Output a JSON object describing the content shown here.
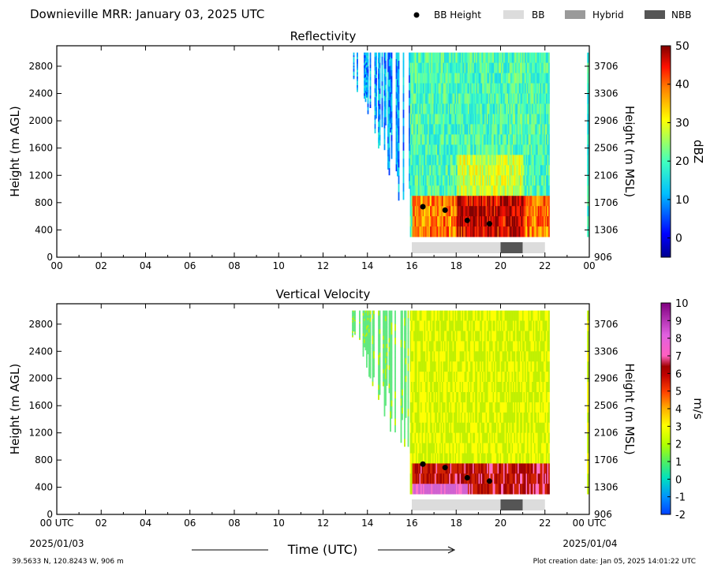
{
  "header": {
    "title": "Downieville MRR:  January 03, 2025 UTC",
    "legend": [
      {
        "label": "BB Height",
        "kind": "dot",
        "color": "#000000"
      },
      {
        "label": "BB",
        "kind": "box",
        "color": "#dcdcdc"
      },
      {
        "label": "Hybrid",
        "kind": "box",
        "color": "#9a9a9a"
      },
      {
        "label": "NBB",
        "kind": "box",
        "color": "#555555"
      }
    ]
  },
  "footer": {
    "location": "39.5633 N, 120.8243 W, 906 m",
    "creation_date": "Plot creation date: Jan 05, 2025 14:01:22 UTC",
    "xlabel": "Time (UTC)",
    "start_date": "2025/01/03",
    "end_date": "2025/01/04"
  },
  "chart_data": [
    {
      "type": "heatmap",
      "title": "Reflectivity",
      "ylabel": "Height (m AGL)",
      "ylabel_right": "Height (m MSL)",
      "colorbar_label": "dBZ",
      "colorbar_ticks": [
        "50",
        "40",
        "30",
        "20",
        "10",
        "0"
      ],
      "colorbar_range": [
        -5,
        50
      ],
      "colormap": "jet",
      "xlim_hours": [
        0,
        24
      ],
      "ylim_m_agl": [
        0,
        3100
      ],
      "x_tick_labels": [
        "00",
        "02",
        "04",
        "06",
        "08",
        "10",
        "12",
        "14",
        "16",
        "18",
        "20",
        "22",
        "00"
      ],
      "y_ticks_agl": [
        "0",
        "400",
        "800",
        "1200",
        "1600",
        "2000",
        "2400",
        "2800"
      ],
      "y_ticks_msl": [
        "906",
        "1306",
        "1706",
        "2106",
        "2506",
        "2906",
        "3306",
        "3706"
      ],
      "data_extent": {
        "start_hour": 13.3,
        "end_hour": 22.2,
        "min_height_m": 300,
        "max_height_m": 3000
      },
      "bb_height_points": [
        {
          "hour": 16.5,
          "height_m": 740
        },
        {
          "hour": 17.5,
          "height_m": 690
        },
        {
          "hour": 18.5,
          "height_m": 540
        },
        {
          "hour": 19.5,
          "height_m": 490
        }
      ],
      "bb_type_bar": [
        {
          "start_hour": 16.0,
          "end_hour": 20.0,
          "type": "BB"
        },
        {
          "start_hour": 20.0,
          "end_hour": 21.0,
          "type": "NBB"
        },
        {
          "start_hour": 21.0,
          "end_hour": 22.0,
          "type": "BB"
        }
      ]
    },
    {
      "type": "heatmap",
      "title": "Vertical Velocity",
      "ylabel": "Height (m AGL)",
      "ylabel_right": "Height (m MSL)",
      "colorbar_label": "m/s",
      "colorbar_ticks": [
        "10",
        "9",
        "8",
        "7",
        "6",
        "5",
        "4",
        "3",
        "2",
        "1",
        "0",
        "-1",
        "-2"
      ],
      "colorbar_range": [
        -2,
        10
      ],
      "xlim_hours": [
        0,
        24
      ],
      "ylim_m_agl": [
        0,
        3100
      ],
      "x_tick_labels": [
        "00 UTC",
        "02",
        "04",
        "06",
        "08",
        "10",
        "12",
        "14",
        "16",
        "18",
        "20",
        "22",
        "00 UTC"
      ],
      "y_ticks_agl": [
        "0",
        "400",
        "800",
        "1200",
        "1600",
        "2000",
        "2400",
        "2800"
      ],
      "y_ticks_msl": [
        "906",
        "1306",
        "1706",
        "2106",
        "2506",
        "2906",
        "3306",
        "3706"
      ],
      "data_extent": {
        "start_hour": 13.3,
        "end_hour": 22.2,
        "min_height_m": 300,
        "max_height_m": 3000
      },
      "bb_height_points": [
        {
          "hour": 16.5,
          "height_m": 740
        },
        {
          "hour": 17.5,
          "height_m": 690
        },
        {
          "hour": 18.5,
          "height_m": 540
        },
        {
          "hour": 19.5,
          "height_m": 490
        }
      ],
      "bb_type_bar": [
        {
          "start_hour": 16.0,
          "end_hour": 20.0,
          "type": "BB"
        },
        {
          "start_hour": 20.0,
          "end_hour": 21.0,
          "type": "NBB"
        },
        {
          "start_hour": 21.0,
          "end_hour": 22.0,
          "type": "BB"
        }
      ]
    }
  ]
}
